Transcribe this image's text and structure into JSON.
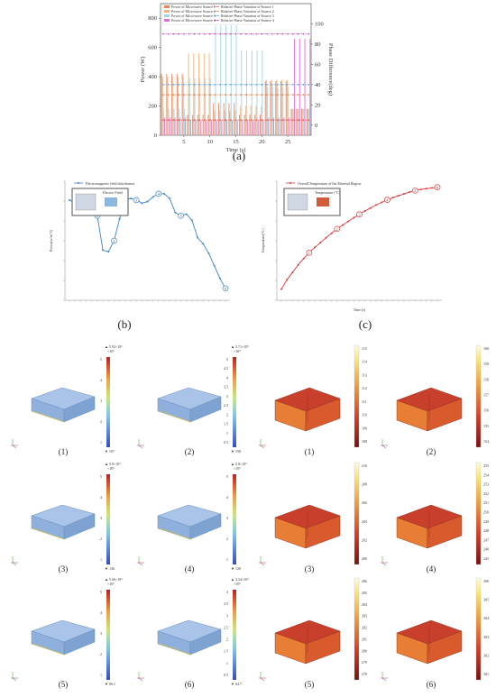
{
  "panel_labels": {
    "a": "(a)",
    "b": "(b)",
    "c": "(c)"
  },
  "chart_data": [
    {
      "type": "bar",
      "xlabel": "Time (s)",
      "ylabel": "Power (W)",
      "y2label": "Phase Difference(deg)",
      "ylim": [
        0,
        900
      ],
      "y2lim": [
        -10,
        120
      ],
      "yticks": [
        "0",
        "200",
        "400",
        "600",
        "800"
      ],
      "y2ticks": [
        "0",
        "20",
        "40",
        "60",
        "80",
        "100"
      ],
      "xticks": [
        "5",
        "10",
        "15",
        "20",
        "25"
      ],
      "legend": [
        "Power of Microwave Source 1",
        "Power of Microwave Source 2",
        "Power of Microwave Source 3",
        "Power of Microwave Source 4",
        "Relative Phase Variation of Source 1",
        "Relative Phase Variation of Source 2",
        "Relative Phase Variation of Source 3",
        "Relative Phase Variation of Source 4"
      ],
      "colors": [
        "#e8835a",
        "#f2b07a",
        "#9fd3e6",
        "#e06bd6"
      ],
      "source1": [
        420,
        420,
        420,
        420,
        420,
        140,
        140,
        140,
        140,
        140,
        220,
        220,
        220,
        220,
        220,
        140,
        140,
        140,
        140,
        140,
        370,
        370,
        370,
        370,
        370,
        180,
        180,
        180,
        180
      ],
      "source2": [
        400,
        400,
        400,
        400,
        400,
        560,
        560,
        560,
        560,
        560,
        170,
        170,
        170,
        170,
        170,
        200,
        200,
        200,
        200,
        200,
        380,
        380,
        380,
        380,
        380,
        180,
        180,
        180,
        180
      ],
      "source3": [
        180,
        180,
        180,
        180,
        180,
        390,
        390,
        390,
        390,
        390,
        750,
        750,
        750,
        750,
        750,
        580,
        580,
        580,
        580,
        580,
        330,
        330,
        330,
        330,
        330,
        180,
        180,
        180,
        180
      ],
      "source4": [
        120,
        120,
        120,
        120,
        120,
        100,
        100,
        100,
        100,
        100,
        100,
        100,
        100,
        100,
        100,
        100,
        100,
        100,
        100,
        100,
        120,
        120,
        120,
        120,
        120,
        660,
        660,
        660,
        660
      ],
      "phase1": [
        5,
        5,
        5,
        5,
        5,
        5,
        5,
        5,
        5,
        5,
        5,
        5,
        5,
        5,
        5,
        5,
        5,
        5,
        5,
        5,
        5,
        5,
        5,
        5,
        5,
        5,
        5,
        5,
        5
      ],
      "phase2": [
        30,
        30,
        30,
        30,
        30,
        30,
        30,
        30,
        30,
        30,
        30,
        30,
        30,
        30,
        30,
        30,
        30,
        30,
        30,
        30,
        30,
        30,
        30,
        30,
        30,
        30,
        30,
        30,
        30
      ],
      "phase3": [
        40,
        40,
        40,
        40,
        40,
        40,
        40,
        40,
        40,
        40,
        40,
        40,
        40,
        40,
        40,
        40,
        40,
        40,
        40,
        40,
        40,
        40,
        40,
        40,
        40,
        40,
        40,
        40,
        40
      ],
      "phase4": [
        90,
        90,
        90,
        90,
        90,
        90,
        90,
        90,
        90,
        90,
        90,
        90,
        90,
        90,
        90,
        90,
        90,
        90,
        90,
        90,
        90,
        90,
        90,
        90,
        90,
        90,
        90,
        90,
        90
      ]
    },
    {
      "type": "line",
      "legend": "Electromagnetic field distribution",
      "ylabel": "Power(w/m^3)",
      "inset_label": "Electric Field",
      "y": [
        520,
        510,
        505,
        498,
        492,
        470,
        360,
        355,
        390,
        460,
        520,
        525,
        520,
        510,
        515,
        530,
        540,
        540,
        525,
        480,
        470,
        475,
        455,
        400,
        380,
        350,
        310,
        270,
        238
      ],
      "circle_points": [
        {
          "index": 5,
          "label": "1"
        },
        {
          "index": 8,
          "label": "2"
        },
        {
          "index": 12,
          "label": "3"
        },
        {
          "index": 16,
          "label": "4"
        },
        {
          "index": 20,
          "label": "5"
        },
        {
          "index": 28,
          "label": "6"
        }
      ],
      "ylim": [
        200,
        580
      ]
    },
    {
      "type": "line",
      "legend": "Overall Temperature of the Material Region",
      "xlabel": "Time (s)",
      "ylabel": "Temperature(°C)",
      "inset_label": "Temperature (°C)",
      "y": [
        30,
        55,
        75,
        95,
        112,
        128,
        142,
        155,
        168,
        180,
        192,
        202,
        212,
        222,
        231,
        240,
        248,
        256,
        263,
        270,
        276,
        281,
        286,
        291,
        295,
        298,
        300,
        302,
        304
      ],
      "circle_points": [
        {
          "index": 5,
          "label": "1"
        },
        {
          "index": 10,
          "label": "2"
        },
        {
          "index": 14,
          "label": "3"
        },
        {
          "index": 19,
          "label": "4"
        },
        {
          "index": 24,
          "label": "5"
        },
        {
          "index": 28,
          "label": "6"
        }
      ],
      "ylim": [
        0,
        320
      ]
    }
  ],
  "em_plots": [
    {
      "label": "(1)",
      "max": "▲ 5.92×10⁵",
      "exp": "×10⁵",
      "min": "▼ 107",
      "ticks": [
        "5",
        "4",
        "3",
        "2",
        "1"
      ]
    },
    {
      "label": "(2)",
      "max": "▲ 5.71×10⁵",
      "exp": "×10⁵",
      "min": "▼ 158",
      "ticks": [
        "5",
        "4.5",
        "4",
        "3.5",
        "3",
        "2.5",
        "2",
        "1.5",
        "1",
        "0.5"
      ]
    },
    {
      "label": "(3)",
      "max": "▲ 5.9×10⁵",
      "exp": "×10⁵",
      "min": "▼ 146",
      "ticks": [
        "5",
        "4",
        "3",
        "2",
        "1"
      ]
    },
    {
      "label": "(4)",
      "max": "▲ 5.8×10⁵",
      "exp": "×10⁵",
      "min": "▼ 128",
      "ticks": [
        "5",
        "4",
        "3",
        "2",
        "1"
      ]
    },
    {
      "label": "(5)",
      "max": "▲ 5.66×10⁵",
      "exp": "×10⁵",
      "min": "▼ 96.1",
      "ticks": [
        "5",
        "4",
        "3",
        "2",
        "1"
      ]
    },
    {
      "label": "(6)",
      "max": "▲ 4.24×10⁵",
      "exp": "×10⁵",
      "min": "▼ 64.7",
      "ticks": [
        "4",
        "3.5",
        "3",
        "2.5",
        "2",
        "1.5",
        "1",
        "0.5"
      ]
    }
  ],
  "temp_plots": [
    {
      "label": "(1)",
      "ticks": [
        "115",
        "114",
        "113",
        "112",
        "111",
        "110",
        "109",
        "108"
      ]
    },
    {
      "label": "(2)",
      "ticks": [
        "160",
        "159",
        "158",
        "157",
        "156",
        "155",
        "154"
      ]
    },
    {
      "label": "(3)",
      "ticks": [
        "210",
        "208",
        "206",
        "204",
        "202",
        "200"
      ]
    },
    {
      "label": "(4)",
      "ticks": [
        "255",
        "254",
        "253",
        "252",
        "251",
        "250",
        "249",
        "248",
        "247",
        "246",
        "245"
      ]
    },
    {
      "label": "(5)",
      "ticks": [
        "286",
        "285",
        "284",
        "283",
        "282",
        "281",
        "280",
        "279",
        "278"
      ]
    },
    {
      "label": "(6)",
      "ticks": [
        "306",
        "305",
        "304",
        "303",
        "302",
        "301"
      ]
    }
  ]
}
